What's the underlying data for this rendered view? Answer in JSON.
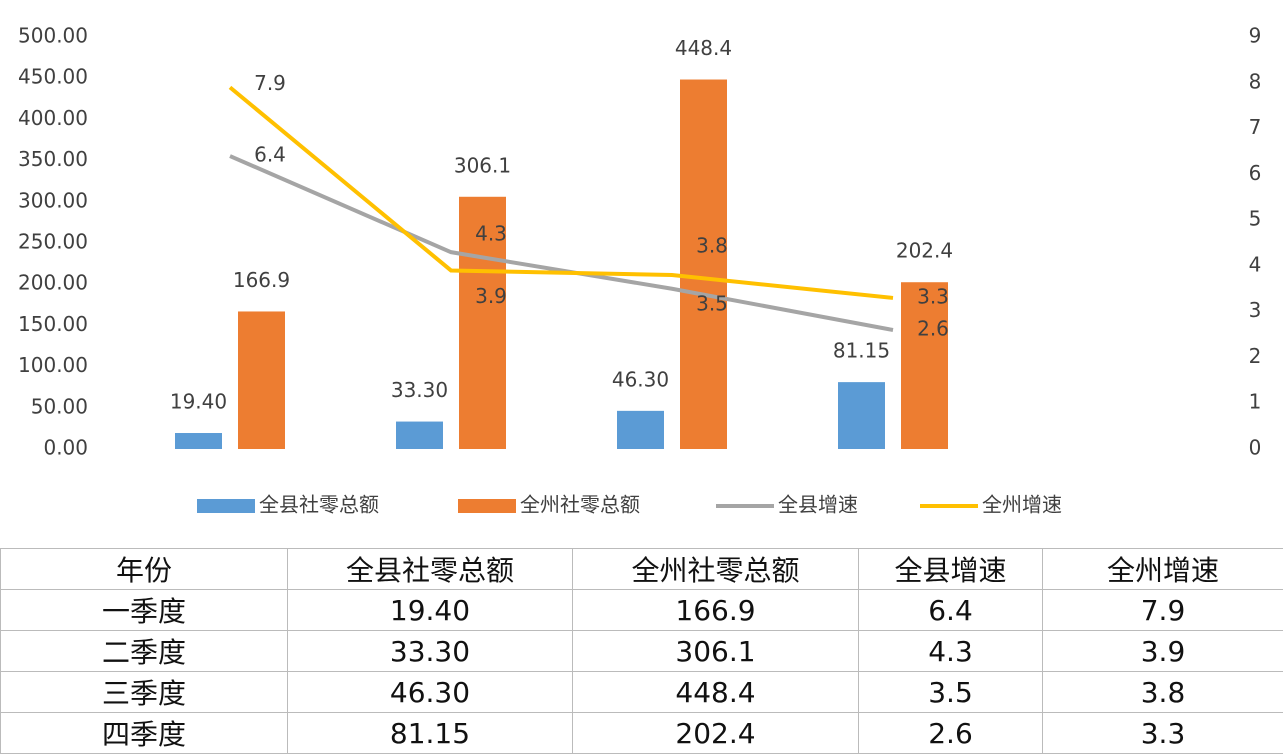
{
  "chart_data": {
    "type": "bar",
    "categories": [
      null,
      null,
      null,
      null
    ],
    "series": [
      {
        "name": "全县社零总额",
        "type": "bar",
        "color": "#5b9bd5",
        "values": [
          19.4,
          33.3,
          46.3,
          81.15
        ],
        "value_labels": [
          "19.40",
          "33.30",
          "46.30",
          "81.15"
        ]
      },
      {
        "name": "全州社零总额",
        "type": "bar",
        "color": "#ed7d31",
        "values": [
          166.9,
          306.1,
          448.4,
          202.4
        ]
      },
      {
        "name": "全县增速",
        "type": "line",
        "axis": "y2",
        "color": "#a5a5a5",
        "values": [
          6.4,
          4.3,
          3.5,
          2.6
        ]
      },
      {
        "name": "全州增速",
        "type": "line",
        "axis": "y2",
        "color": "#ffc000",
        "values": [
          7.9,
          3.9,
          3.8,
          3.3
        ]
      }
    ],
    "ylim": [
      0,
      500
    ],
    "yticks": [
      {
        "value": 0,
        "label": "0.00"
      },
      {
        "value": 50,
        "label": "50.00"
      },
      {
        "value": 100,
        "label": "100.00"
      },
      {
        "value": 150,
        "label": "150.00"
      },
      {
        "value": 200,
        "label": "200.00"
      },
      {
        "value": 250,
        "label": "250.00"
      },
      {
        "value": 300,
        "label": "300.00"
      },
      {
        "value": 350,
        "label": "350.00"
      },
      {
        "value": 400,
        "label": "400.00"
      },
      {
        "value": 450,
        "label": "450.00"
      },
      {
        "value": 500,
        "label": "500.00"
      }
    ],
    "y2lim": [
      0,
      9
    ],
    "y2ticks": [
      0,
      1,
      2,
      3,
      4,
      5,
      6,
      7,
      8,
      9
    ],
    "grid": false,
    "legend": "bottom"
  },
  "table": {
    "header": [
      "年份",
      "全县社零总额",
      "全州社零总额",
      "全县增速",
      "全州增速"
    ],
    "rows": [
      [
        "一季度",
        "19.40",
        "166.9",
        "6.4",
        "7.9"
      ],
      [
        "二季度",
        "33.30",
        "306.1",
        "4.3",
        "3.9"
      ],
      [
        "三季度",
        "46.30",
        "448.4",
        "3.5",
        "3.8"
      ],
      [
        "四季度",
        "81.15",
        "202.4",
        "2.6",
        "3.3"
      ]
    ]
  }
}
